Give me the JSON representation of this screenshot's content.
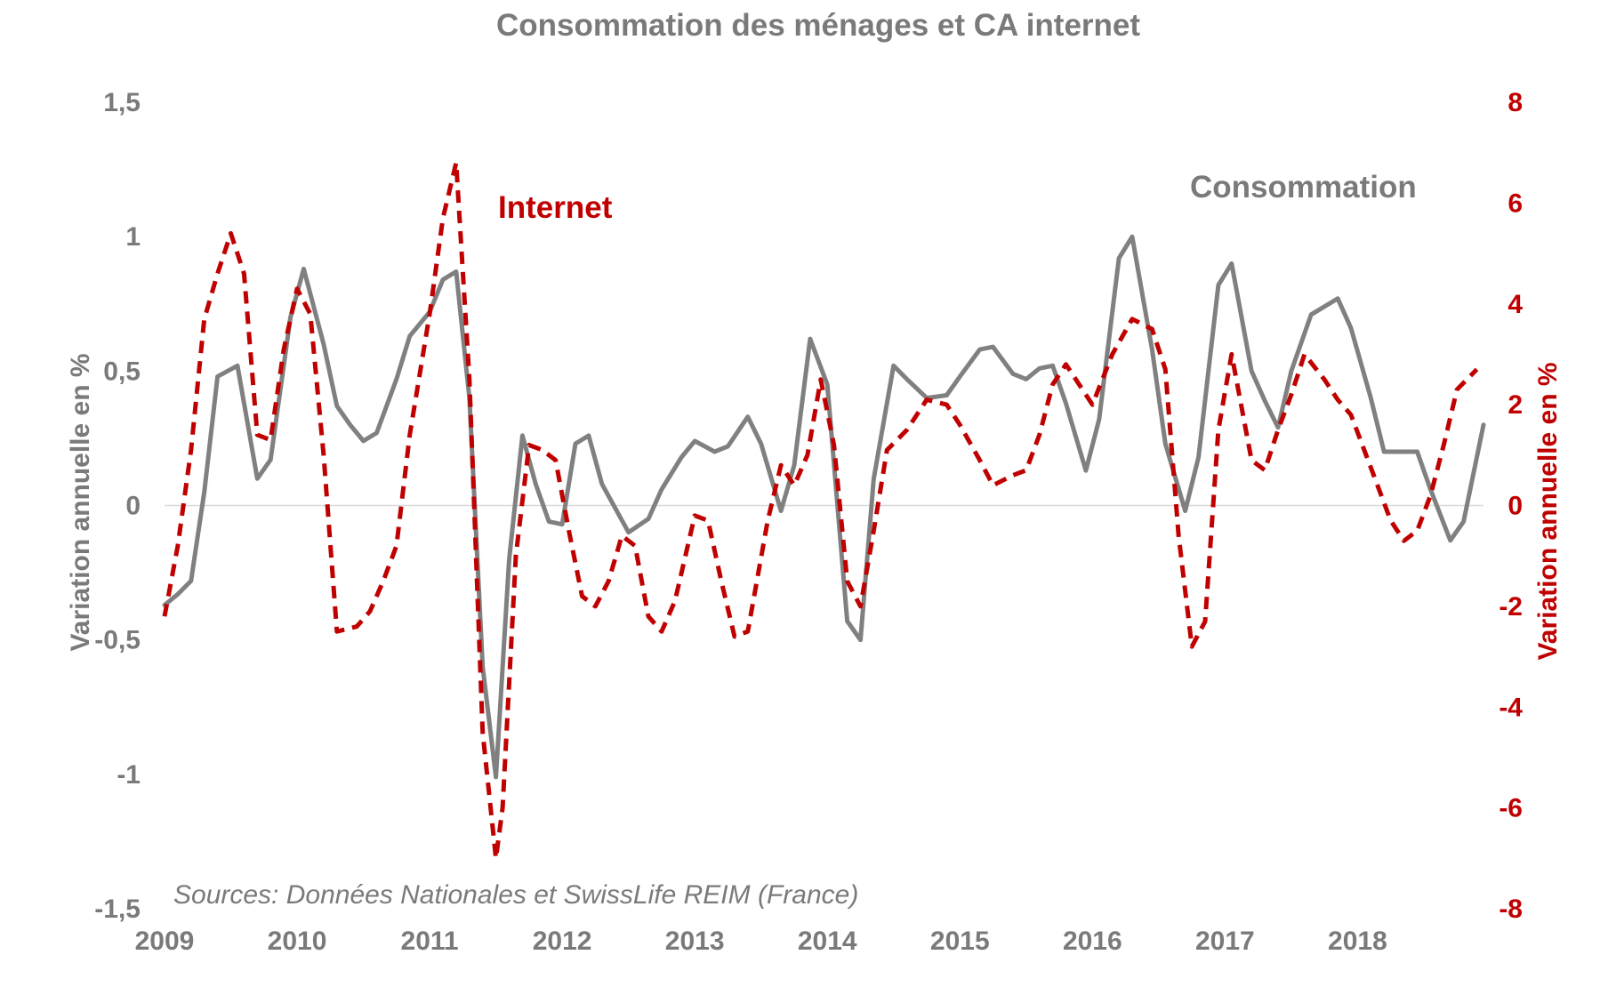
{
  "chart_data": {
    "type": "line",
    "title": "Consommation des ménages et CA internet",
    "source": "Sources: Données Nationales et SwissLife REIM (France)",
    "x_ticks": [
      "2009",
      "2010",
      "2011",
      "2012",
      "2013",
      "2014",
      "2015",
      "2016",
      "2017",
      "2018"
    ],
    "x_range": [
      2009.0,
      2018.75
    ],
    "y_left": {
      "label": "Variation annuelle en %",
      "range": [
        -1.5,
        1.5
      ],
      "ticks": [
        1.5,
        1,
        0.5,
        0,
        -0.5,
        -1,
        -1.5
      ],
      "tick_labels": [
        "1,5",
        "1",
        "0,5",
        "0",
        "-0,5",
        "-1",
        "-1,5"
      ]
    },
    "y_right": {
      "label": "Variation annuelle en %",
      "range": [
        -8,
        8
      ],
      "ticks": [
        8,
        6,
        4,
        2,
        0,
        -2,
        -4,
        -6,
        -8
      ],
      "tick_labels": [
        "8",
        "6",
        "4",
        "2",
        "0",
        "-2",
        "-4",
        "-6",
        "-8"
      ]
    },
    "series": [
      {
        "name": "Consommation",
        "axis": "left",
        "color": "#808080",
        "style": "solid",
        "points": [
          [
            2009.0,
            -0.37
          ],
          [
            2009.1,
            -0.33
          ],
          [
            2009.2,
            -0.28
          ],
          [
            2009.3,
            0.05
          ],
          [
            2009.4,
            0.48
          ],
          [
            2009.55,
            0.52
          ],
          [
            2009.7,
            0.1
          ],
          [
            2009.8,
            0.17
          ],
          [
            2009.95,
            0.7
          ],
          [
            2010.05,
            0.88
          ],
          [
            2010.2,
            0.6
          ],
          [
            2010.3,
            0.37
          ],
          [
            2010.4,
            0.3
          ],
          [
            2010.5,
            0.24
          ],
          [
            2010.6,
            0.27
          ],
          [
            2010.75,
            0.47
          ],
          [
            2010.85,
            0.63
          ],
          [
            2011.0,
            0.72
          ],
          [
            2011.1,
            0.84
          ],
          [
            2011.2,
            0.87
          ],
          [
            2011.3,
            0.4
          ],
          [
            2011.4,
            -0.6
          ],
          [
            2011.5,
            -1.01
          ],
          [
            2011.6,
            -0.2
          ],
          [
            2011.7,
            0.26
          ],
          [
            2011.8,
            0.08
          ],
          [
            2011.9,
            -0.06
          ],
          [
            2012.0,
            -0.07
          ],
          [
            2012.1,
            0.23
          ],
          [
            2012.2,
            0.26
          ],
          [
            2012.3,
            0.08
          ],
          [
            2012.5,
            -0.1
          ],
          [
            2012.65,
            -0.05
          ],
          [
            2012.75,
            0.06
          ],
          [
            2012.9,
            0.18
          ],
          [
            2013.0,
            0.24
          ],
          [
            2013.15,
            0.2
          ],
          [
            2013.25,
            0.22
          ],
          [
            2013.4,
            0.33
          ],
          [
            2013.5,
            0.23
          ],
          [
            2013.65,
            -0.02
          ],
          [
            2013.75,
            0.15
          ],
          [
            2013.87,
            0.62
          ],
          [
            2014.0,
            0.45
          ],
          [
            2014.15,
            -0.43
          ],
          [
            2014.25,
            -0.5
          ],
          [
            2014.35,
            0.1
          ],
          [
            2014.5,
            0.52
          ],
          [
            2014.6,
            0.47
          ],
          [
            2014.75,
            0.4
          ],
          [
            2014.9,
            0.41
          ],
          [
            2015.0,
            0.48
          ],
          [
            2015.15,
            0.58
          ],
          [
            2015.25,
            0.59
          ],
          [
            2015.4,
            0.49
          ],
          [
            2015.5,
            0.47
          ],
          [
            2015.6,
            0.51
          ],
          [
            2015.7,
            0.52
          ],
          [
            2015.8,
            0.38
          ],
          [
            2015.95,
            0.13
          ],
          [
            2016.05,
            0.32
          ],
          [
            2016.2,
            0.92
          ],
          [
            2016.3,
            1.0
          ],
          [
            2016.45,
            0.58
          ],
          [
            2016.55,
            0.23
          ],
          [
            2016.7,
            -0.02
          ],
          [
            2016.8,
            0.18
          ],
          [
            2016.95,
            0.82
          ],
          [
            2017.05,
            0.9
          ],
          [
            2017.2,
            0.5
          ],
          [
            2017.3,
            0.39
          ],
          [
            2017.4,
            0.29
          ],
          [
            2017.5,
            0.5
          ],
          [
            2017.65,
            0.71
          ],
          [
            2017.75,
            0.74
          ],
          [
            2017.85,
            0.77
          ],
          [
            2017.95,
            0.66
          ],
          [
            2018.1,
            0.4
          ],
          [
            2018.2,
            0.2
          ],
          [
            2018.35,
            0.2
          ],
          [
            2018.45,
            0.2
          ],
          [
            2018.55,
            0.06
          ],
          [
            2018.7,
            -0.13
          ],
          [
            2018.8,
            -0.06
          ],
          [
            2018.95,
            0.3
          ]
        ]
      },
      {
        "name": "Internet",
        "axis": "right",
        "color": "#c00000",
        "style": "dashed",
        "points": [
          [
            2009.0,
            -2.2
          ],
          [
            2009.1,
            -0.8
          ],
          [
            2009.2,
            1.1
          ],
          [
            2009.3,
            3.7
          ],
          [
            2009.4,
            4.6
          ],
          [
            2009.5,
            5.4
          ],
          [
            2009.6,
            4.6
          ],
          [
            2009.7,
            1.4
          ],
          [
            2009.8,
            1.3
          ],
          [
            2009.9,
            3.1
          ],
          [
            2010.0,
            4.3
          ],
          [
            2010.1,
            3.8
          ],
          [
            2010.2,
            1.0
          ],
          [
            2010.3,
            -2.5
          ],
          [
            2010.45,
            -2.4
          ],
          [
            2010.55,
            -2.1
          ],
          [
            2010.65,
            -1.5
          ],
          [
            2010.75,
            -0.8
          ],
          [
            2010.85,
            1.4
          ],
          [
            2011.0,
            3.8
          ],
          [
            2011.1,
            5.7
          ],
          [
            2011.2,
            6.8
          ],
          [
            2011.3,
            2.5
          ],
          [
            2011.4,
            -4.5
          ],
          [
            2011.5,
            -7.0
          ],
          [
            2011.55,
            -6.0
          ],
          [
            2011.65,
            -1.0
          ],
          [
            2011.75,
            1.2
          ],
          [
            2011.85,
            1.1
          ],
          [
            2011.95,
            0.9
          ],
          [
            2012.05,
            -0.5
          ],
          [
            2012.15,
            -1.8
          ],
          [
            2012.25,
            -2.0
          ],
          [
            2012.35,
            -1.5
          ],
          [
            2012.45,
            -0.6
          ],
          [
            2012.55,
            -0.8
          ],
          [
            2012.65,
            -2.2
          ],
          [
            2012.75,
            -2.5
          ],
          [
            2012.85,
            -1.9
          ],
          [
            2013.0,
            -0.2
          ],
          [
            2013.1,
            -0.3
          ],
          [
            2013.2,
            -1.5
          ],
          [
            2013.3,
            -2.6
          ],
          [
            2013.4,
            -2.5
          ],
          [
            2013.55,
            -0.3
          ],
          [
            2013.65,
            0.8
          ],
          [
            2013.75,
            0.4
          ],
          [
            2013.85,
            1.0
          ],
          [
            2013.95,
            2.5
          ],
          [
            2014.05,
            1.2
          ],
          [
            2014.15,
            -1.5
          ],
          [
            2014.25,
            -2.0
          ],
          [
            2014.35,
            -0.5
          ],
          [
            2014.45,
            1.1
          ],
          [
            2014.6,
            1.5
          ],
          [
            2014.75,
            2.1
          ],
          [
            2014.9,
            2.0
          ],
          [
            2015.0,
            1.6
          ],
          [
            2015.15,
            0.9
          ],
          [
            2015.25,
            0.4
          ],
          [
            2015.4,
            0.6
          ],
          [
            2015.5,
            0.7
          ],
          [
            2015.6,
            1.4
          ],
          [
            2015.7,
            2.4
          ],
          [
            2015.8,
            2.8
          ],
          [
            2015.9,
            2.4
          ],
          [
            2016.0,
            2.0
          ],
          [
            2016.15,
            3.0
          ],
          [
            2016.3,
            3.7
          ],
          [
            2016.45,
            3.5
          ],
          [
            2016.55,
            2.7
          ],
          [
            2016.65,
            -0.6
          ],
          [
            2016.75,
            -2.8
          ],
          [
            2016.85,
            -2.3
          ],
          [
            2016.95,
            1.5
          ],
          [
            2017.05,
            3.0
          ],
          [
            2017.2,
            0.9
          ],
          [
            2017.3,
            0.7
          ],
          [
            2017.4,
            1.5
          ],
          [
            2017.5,
            2.2
          ],
          [
            2017.6,
            3.0
          ],
          [
            2017.75,
            2.5
          ],
          [
            2017.85,
            2.1
          ],
          [
            2017.95,
            1.8
          ],
          [
            2018.05,
            1.1
          ],
          [
            2018.15,
            0.4
          ],
          [
            2018.25,
            -0.3
          ],
          [
            2018.35,
            -0.7
          ],
          [
            2018.45,
            -0.5
          ],
          [
            2018.55,
            0.2
          ],
          [
            2018.65,
            1.2
          ],
          [
            2018.75,
            2.3
          ],
          [
            2018.9,
            2.7
          ]
        ]
      }
    ],
    "series_labels": {
      "internet": "Internet",
      "consommation": "Consommation"
    },
    "grid": false,
    "zero_line": true
  }
}
